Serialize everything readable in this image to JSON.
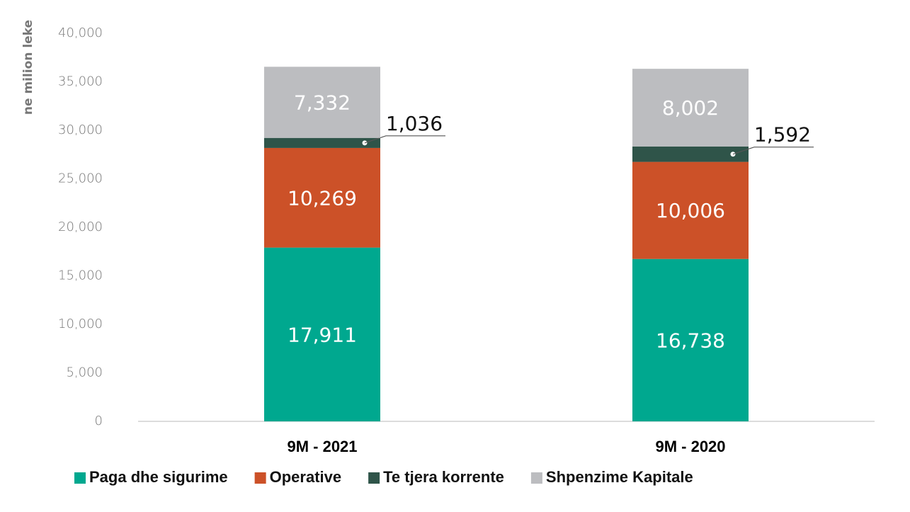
{
  "chart_data": {
    "type": "stacked_bar",
    "y_label": "ne milion leke",
    "categories": [
      "9M - 2021",
      "9M - 2020"
    ],
    "series": [
      {
        "name": "Paga dhe sigurime",
        "color": "#00a88f",
        "values": [
          17911,
          16738
        ],
        "value_labels": [
          "17,911",
          "16,738"
        ]
      },
      {
        "name": "Operative",
        "color": "#cc5128",
        "values": [
          10269,
          10006
        ],
        "value_labels": [
          "10,269",
          "10,006"
        ]
      },
      {
        "name": "Te tjera korrente",
        "color": "#2f5449",
        "values": [
          1036,
          1592
        ],
        "value_labels": [
          "1,036",
          "1,592"
        ]
      },
      {
        "name": "Shpenzime Kapitale",
        "color": "#bcbdc0",
        "values": [
          7332,
          8002
        ],
        "value_labels": [
          "7,332",
          "8,002"
        ]
      }
    ],
    "ylim": [
      0,
      40000
    ],
    "yticks": [
      0,
      {
        "value": 5000,
        "label": "5,000"
      },
      {
        "value": 10000,
        "label": "10,000"
      },
      {
        "value": 15000,
        "label": "15,000"
      },
      {
        "value": 20000,
        "label": "20,000"
      },
      {
        "value": 25000,
        "label": "25,000"
      },
      {
        "value": 30000,
        "label": "30,000"
      },
      {
        "value": 35000,
        "label": "35,000"
      },
      {
        "value": 40000,
        "label": "40,000"
      }
    ],
    "legend": "bottom"
  }
}
